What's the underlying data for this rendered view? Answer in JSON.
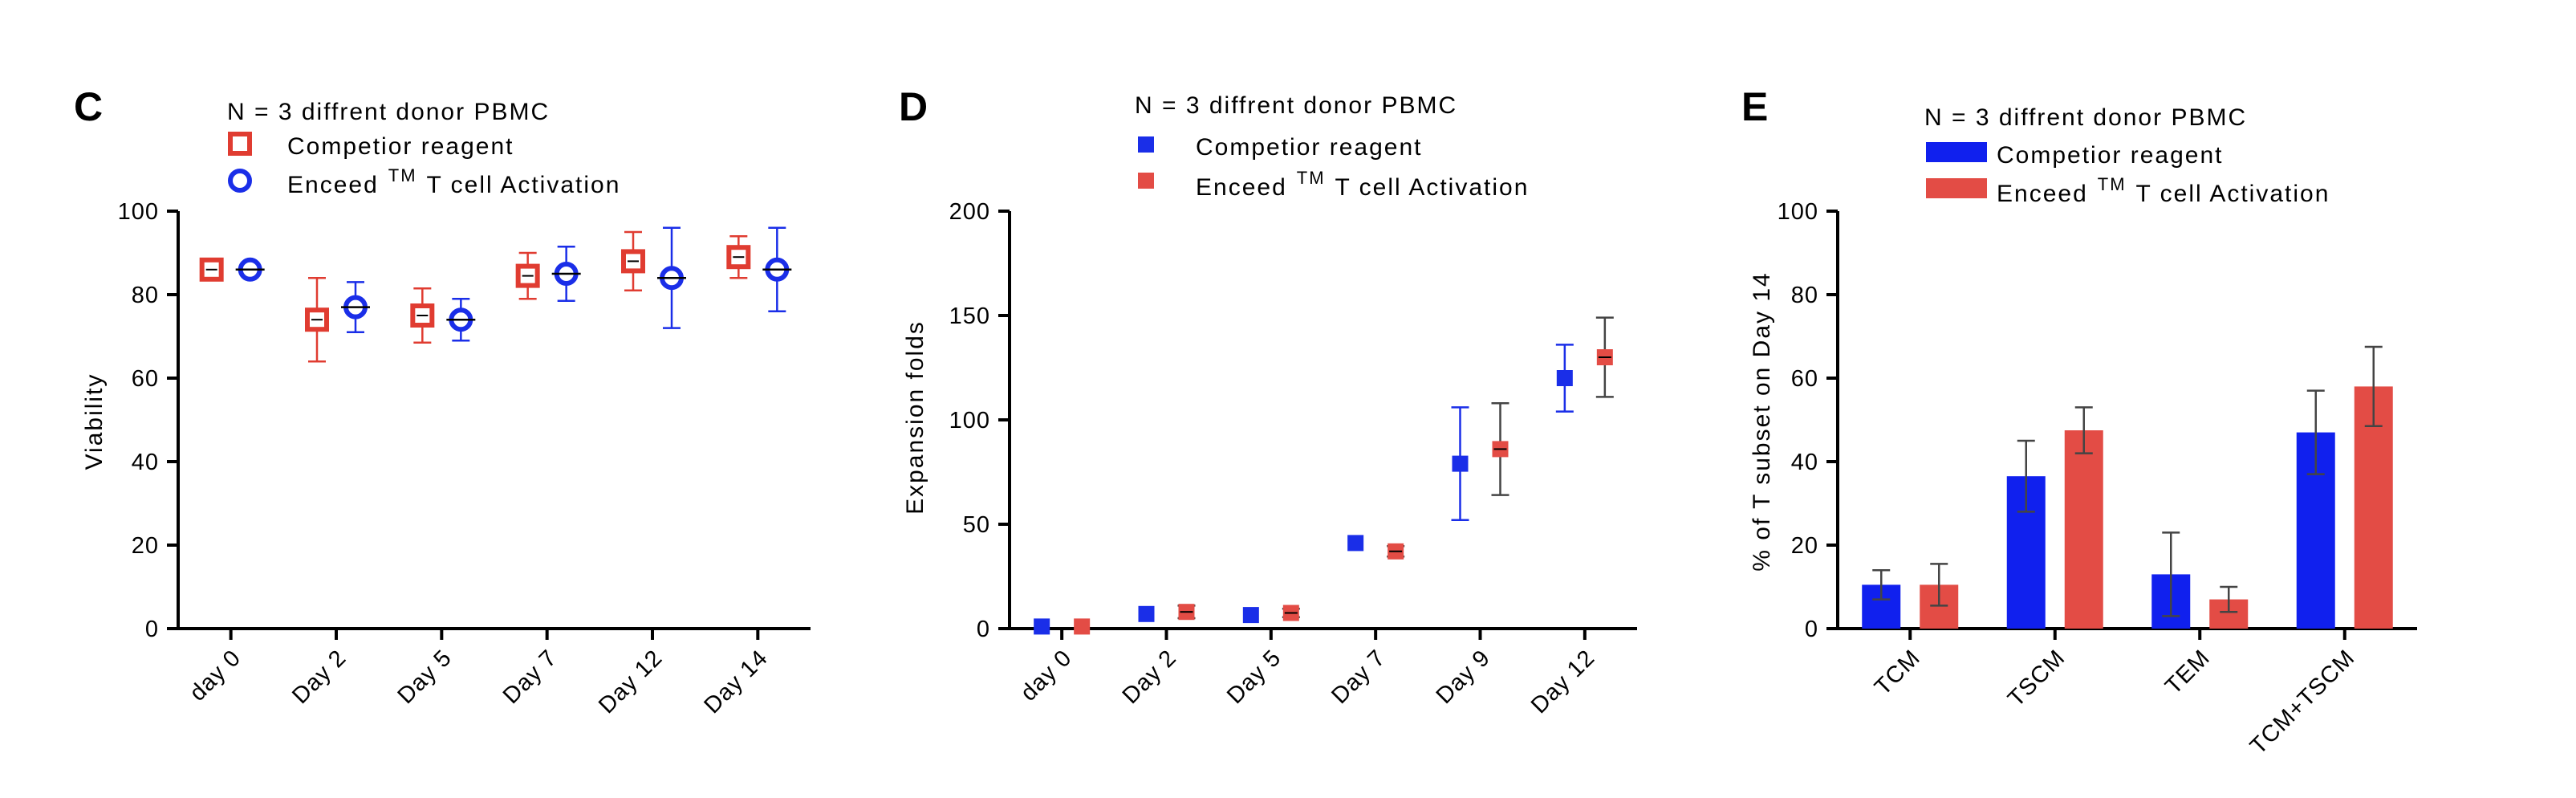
{
  "chart_data": [
    {
      "type": "scatter",
      "panel": "C",
      "legend_title": "N = 3 diffrent donor PBMC",
      "xlabel": "",
      "ylabel": "Viability",
      "ylim": [
        0,
        100
      ],
      "yticks": [
        "0",
        "20",
        "40",
        "60",
        "80",
        "100"
      ],
      "categories": [
        "day 0",
        "Day 2",
        "Day 5",
        "Day 7",
        "Day 12",
        "Day 14"
      ],
      "legend_position": "top-left",
      "grid": false,
      "series": [
        {
          "name": "Competior reagent",
          "color": "#e03c31",
          "marker": "square-open",
          "values": [
            86,
            74,
            75,
            84.5,
            88,
            89
          ],
          "errors": [
            1.5,
            10,
            6.5,
            5.5,
            7,
            5
          ]
        },
        {
          "name": "Enceed",
          "name_tm": "TM",
          "name_rest": "T cell Activation",
          "color": "#1a2ee8",
          "marker": "circle-open",
          "values": [
            86,
            77,
            74,
            85,
            84,
            86
          ],
          "errors": [
            1.5,
            6,
            5,
            6.5,
            12,
            10
          ]
        }
      ]
    },
    {
      "type": "scatter",
      "panel": "D",
      "legend_title": "N = 3 diffrent donor PBMC",
      "xlabel": "",
      "ylabel": "Expansion folds",
      "ylim": [
        0,
        200
      ],
      "yticks": [
        "0",
        "50",
        "100",
        "150",
        "200"
      ],
      "categories": [
        "day 0",
        "Day 2",
        "Day 5",
        "Day 7",
        "Day 9",
        "Day 12"
      ],
      "legend_position": "top-left",
      "grid": false,
      "series": [
        {
          "name": "Competior reagent",
          "color": "#1a2ee8",
          "marker": "square-filled",
          "values": [
            1,
            7,
            6.5,
            41,
            79,
            120
          ],
          "errors": [
            0,
            0,
            0,
            0,
            27,
            16
          ]
        },
        {
          "name": "Enceed",
          "name_tm": "TM",
          "name_rest": "T cell Activation",
          "color": "#e34c45",
          "marker": "square-filled",
          "values": [
            1,
            8,
            7.5,
            37,
            86,
            130
          ],
          "errors": [
            0,
            3,
            2,
            2.5,
            22,
            19
          ]
        }
      ]
    },
    {
      "type": "bar",
      "panel": "E",
      "legend_title": "N =   3 diffrent donor PBMC",
      "xlabel": "",
      "ylabel": "% of T subset on Day 14",
      "ylim": [
        0,
        100
      ],
      "yticks": [
        "0",
        "20",
        "40",
        "60",
        "80",
        "100"
      ],
      "categories": [
        "TCM",
        "TSCM",
        "TEM",
        "TCM+TSCM"
      ],
      "legend_position": "top-left",
      "grid": false,
      "series": [
        {
          "name": "Competior reagent",
          "color": "#1020ee",
          "values": [
            10.5,
            36.5,
            13,
            47
          ],
          "errors": [
            3.5,
            8.5,
            10,
            10
          ]
        },
        {
          "name": "Enceed",
          "name_tm": "TM",
          "name_rest": "T cell Activation",
          "color": "#e34c45",
          "values": [
            10.5,
            47.5,
            7,
            58
          ],
          "errors": [
            5,
            5.5,
            3,
            9.5
          ]
        }
      ]
    }
  ]
}
